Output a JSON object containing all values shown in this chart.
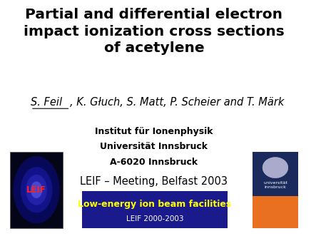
{
  "title_line1": "Partial and differential electron",
  "title_line2": "impact ionization cross sections",
  "title_line3": "of acetylene",
  "institute_line1": "Institut für Ionenphysik",
  "institute_line2": "Universität Innsbruck",
  "institute_line3": "A-6020 Innsbruck",
  "meeting": "LEIF – Meeting, Belfast 2003",
  "leif_banner_line1": "Low-energy ion beam facilities",
  "leif_banner_line2": "LEIF 2000-2003",
  "banner_bg_color": "#1a1a8c",
  "banner_text_color": "#ffff00",
  "banner_subtext_color": "#ffffff",
  "bg_color": "#ffffff",
  "title_color": "#000000",
  "author_color": "#000000",
  "institute_color": "#000000"
}
